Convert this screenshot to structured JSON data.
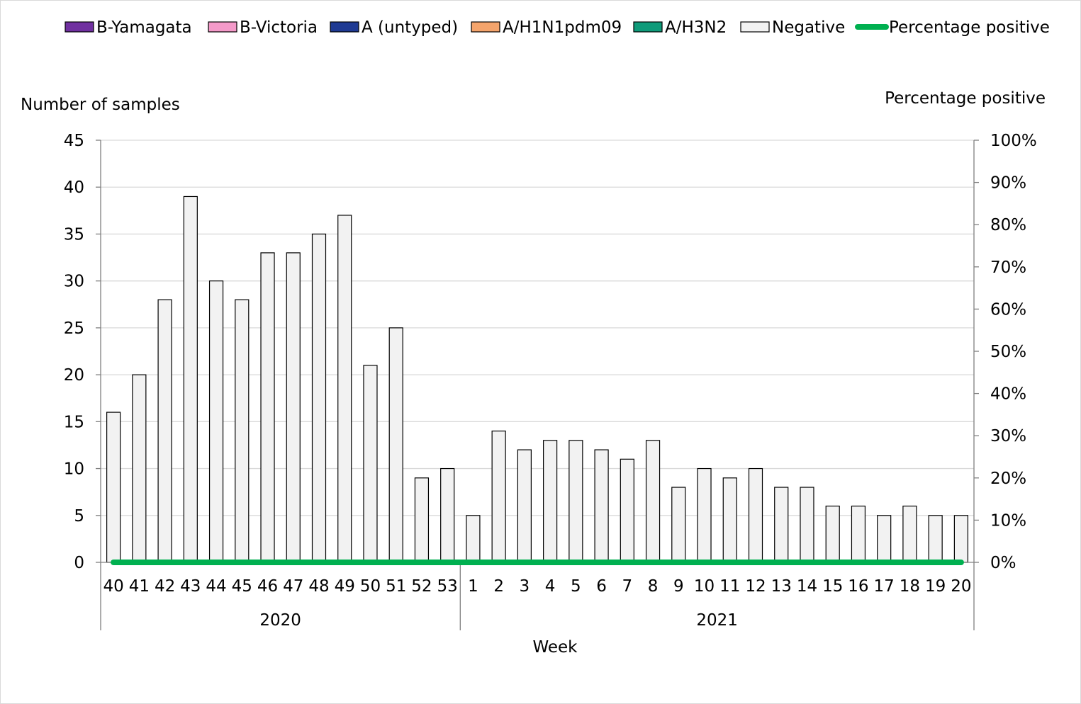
{
  "chart_data": {
    "type": "bar",
    "xlabel": "Week",
    "ylabel": "Number of samples",
    "y2label": "Percentage positive",
    "ylim": [
      0,
      45
    ],
    "y_ticks": [
      "0",
      "5",
      "10",
      "15",
      "20",
      "25",
      "30",
      "35",
      "40",
      "45"
    ],
    "y2lim": [
      0,
      100
    ],
    "y2_ticks": [
      "0%",
      "10%",
      "20%",
      "30%",
      "40%",
      "50%",
      "60%",
      "70%",
      "80%",
      "90%",
      "100%"
    ],
    "grid": true,
    "legend_position": "top",
    "categories": [
      "40",
      "41",
      "42",
      "43",
      "44",
      "45",
      "46",
      "47",
      "48",
      "49",
      "50",
      "51",
      "52",
      "53",
      "1",
      "2",
      "3",
      "4",
      "5",
      "6",
      "7",
      "8",
      "9",
      "10",
      "11",
      "12",
      "13",
      "14",
      "15",
      "16",
      "17",
      "18",
      "19",
      "20"
    ],
    "year_groups": [
      {
        "label": "2020",
        "count": 14
      },
      {
        "label": "2021",
        "count": 20
      }
    ],
    "series": [
      {
        "name": "B-Yamagata",
        "kind": "bar",
        "color": "#7030a0",
        "values": [
          0,
          0,
          0,
          0,
          0,
          0,
          0,
          0,
          0,
          0,
          0,
          0,
          0,
          0,
          0,
          0,
          0,
          0,
          0,
          0,
          0,
          0,
          0,
          0,
          0,
          0,
          0,
          0,
          0,
          0,
          0,
          0,
          0,
          0
        ]
      },
      {
        "name": "B-Victoria",
        "kind": "bar",
        "color": "#f49ac9",
        "values": [
          0,
          0,
          0,
          0,
          0,
          0,
          0,
          0,
          0,
          0,
          0,
          0,
          0,
          0,
          0,
          0,
          0,
          0,
          0,
          0,
          0,
          0,
          0,
          0,
          0,
          0,
          0,
          0,
          0,
          0,
          0,
          0,
          0,
          0
        ]
      },
      {
        "name": "A (untyped)",
        "kind": "bar",
        "color": "#1f3a93",
        "values": [
          0,
          0,
          0,
          0,
          0,
          0,
          0,
          0,
          0,
          0,
          0,
          0,
          0,
          0,
          0,
          0,
          0,
          0,
          0,
          0,
          0,
          0,
          0,
          0,
          0,
          0,
          0,
          0,
          0,
          0,
          0,
          0,
          0,
          0
        ]
      },
      {
        "name": "A/H1N1pdm09",
        "kind": "bar",
        "color": "#f4a46c",
        "values": [
          0,
          0,
          0,
          0,
          0,
          0,
          0,
          0,
          0,
          0,
          0,
          0,
          0,
          0,
          0,
          0,
          0,
          0,
          0,
          0,
          0,
          0,
          0,
          0,
          0,
          0,
          0,
          0,
          0,
          0,
          0,
          0,
          0,
          0
        ]
      },
      {
        "name": "A/H3N2",
        "kind": "bar",
        "color": "#0f9b7a",
        "values": [
          0,
          0,
          0,
          0,
          0,
          0,
          0,
          0,
          0,
          0,
          0,
          0,
          0,
          0,
          0,
          0,
          0,
          0,
          0,
          0,
          0,
          0,
          0,
          0,
          0,
          0,
          0,
          0,
          0,
          0,
          0,
          0,
          0,
          0
        ]
      },
      {
        "name": "Negative",
        "kind": "bar",
        "color": "#f2f2f2",
        "values": [
          16,
          20,
          28,
          39,
          30,
          28,
          33,
          33,
          35,
          37,
          21,
          25,
          9,
          10,
          5,
          14,
          12,
          13,
          13,
          12,
          11,
          13,
          8,
          10,
          9,
          10,
          8,
          8,
          6,
          6,
          5,
          6,
          5,
          5
        ]
      },
      {
        "name": "Percentage positive",
        "kind": "line",
        "color": "#00b050",
        "values": [
          0,
          0,
          0,
          0,
          0,
          0,
          0,
          0,
          0,
          0,
          0,
          0,
          0,
          0,
          0,
          0,
          0,
          0,
          0,
          0,
          0,
          0,
          0,
          0,
          0,
          0,
          0,
          0,
          0,
          0,
          0,
          0,
          0,
          0
        ]
      }
    ]
  }
}
